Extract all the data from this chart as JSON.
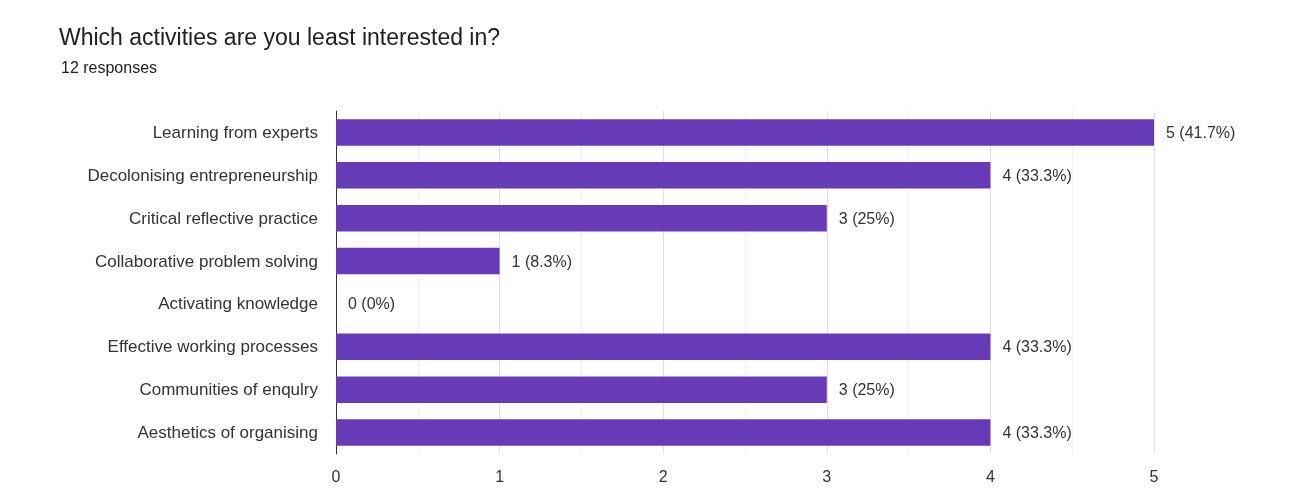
{
  "chart_data": {
    "type": "bar",
    "orientation": "horizontal",
    "title": "Which activities are you least interested in?",
    "subtitle": "12 responses",
    "categories": [
      "Learning from experts",
      "Decolonising entrepreneurship",
      "Critical reflective practice",
      "Collaborative problem solving",
      "Activating knowledge",
      "Effective working processes",
      "Communities of enqulry",
      "Aesthetics of organising"
    ],
    "values": [
      5,
      4,
      3,
      1,
      0,
      4,
      3,
      4
    ],
    "value_labels": [
      "5 (41.7%)",
      "4 (33.3%)",
      "3 (25%)",
      "1 (8.3%)",
      "0 (0%)",
      "4 (33.3%)",
      "3 (25%)",
      "4 (33.3%)"
    ],
    "color": "#673ab7",
    "xlim": [
      0,
      5
    ],
    "xticks": [
      0,
      1,
      2,
      3,
      4,
      5
    ],
    "grid": "x"
  }
}
